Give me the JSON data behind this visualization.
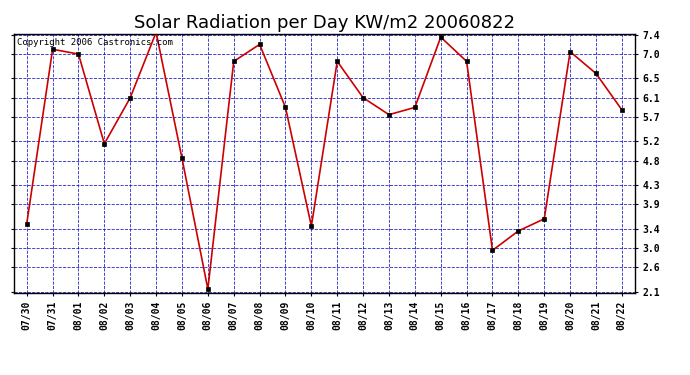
{
  "title": "Solar Radiation per Day KW/m2 20060822",
  "copyright_text": "Copyright 2006 Castronics.com",
  "x_labels": [
    "07/30",
    "07/31",
    "08/01",
    "08/02",
    "08/03",
    "08/04",
    "08/05",
    "08/06",
    "08/07",
    "08/08",
    "08/09",
    "08/10",
    "08/11",
    "08/12",
    "08/13",
    "08/14",
    "08/15",
    "08/16",
    "08/17",
    "08/18",
    "08/19",
    "08/20",
    "08/21",
    "08/22"
  ],
  "y_values": [
    3.5,
    7.1,
    7.0,
    5.15,
    6.1,
    7.45,
    4.85,
    2.15,
    6.85,
    7.2,
    5.9,
    3.45,
    6.85,
    6.1,
    5.75,
    5.9,
    7.35,
    6.85,
    2.95,
    3.35,
    3.6,
    7.05,
    6.6,
    5.85
  ],
  "line_color": "#cc0000",
  "marker_color": "#000000",
  "background_color": "#ffffff",
  "plot_bg_color": "#ffffff",
  "grid_color": "#0000bb",
  "ylim_min": 2.1,
  "ylim_max": 7.4,
  "yticks": [
    2.1,
    2.6,
    3.0,
    3.4,
    3.9,
    4.3,
    4.8,
    5.2,
    5.7,
    6.1,
    6.5,
    7.0,
    7.4
  ],
  "title_fontsize": 13,
  "tick_fontsize": 7,
  "copyright_fontsize": 6.5
}
